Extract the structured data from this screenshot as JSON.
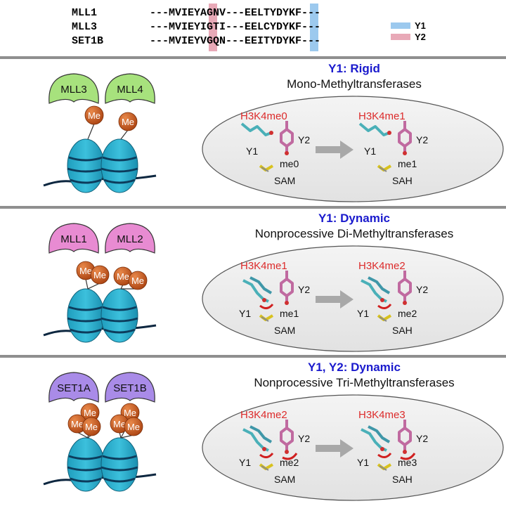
{
  "colors": {
    "y1_highlight": "#9cc9ee",
    "y2_highlight": "#e8a9b7",
    "divider": "#8f8f8f",
    "heading_blue": "#1a1acd",
    "red_label": "#dc2b2b",
    "mll34": "#a7e27d",
    "mll12": "#e88bd2",
    "set1": "#a98be8",
    "me_ball": "#c9541a",
    "nucleosome": "#2ab1cf",
    "ellipse": "#e6e6e6"
  },
  "alignment": {
    "names": [
      "MLL1",
      "MLL3",
      "SET1B"
    ],
    "sequences": [
      "---MVIEYAGNV---EELTYDYKF---",
      "---MVIEYIGTI---EELCYDYKF---",
      "---MVIEYVGQN---EEITYDYKF---"
    ]
  },
  "legend": {
    "y1": "Y1",
    "y2": "Y2"
  },
  "panels": [
    {
      "complexes": [
        "MLL3",
        "MLL4"
      ],
      "me_label": "Me",
      "title": "Y1: Rigid",
      "subtitle": "Mono-Methyltransferases",
      "left_state": {
        "state": "H3K4me0",
        "y1": "Y1",
        "y2": "Y2",
        "methyl": "me0",
        "cofactor": "SAM"
      },
      "right_state": {
        "state": "H3K4me1",
        "y1": "Y1",
        "y2": "Y2",
        "methyl": "me1",
        "cofactor": "SAH"
      }
    },
    {
      "complexes": [
        "MLL1",
        "MLL2"
      ],
      "me_label": "Me",
      "title": "Y1: Dynamic",
      "subtitle": "Nonprocessive Di-Methyltransferases",
      "left_state": {
        "state": "H3K4me1",
        "y1": "Y1",
        "y2": "Y2",
        "methyl": "me1",
        "cofactor": "SAM"
      },
      "right_state": {
        "state": "H3K4me2",
        "y1": "Y1",
        "y2": "Y2",
        "methyl": "me2",
        "cofactor": "SAH"
      }
    },
    {
      "complexes": [
        "SET1A",
        "SET1B"
      ],
      "me_label": "Me",
      "title": "Y1, Y2: Dynamic",
      "subtitle": "Nonprocessive Tri-Methyltransferases",
      "left_state": {
        "state": "H3K4me2",
        "y1": "Y1",
        "y2": "Y2",
        "methyl": "me2",
        "cofactor": "SAM"
      },
      "right_state": {
        "state": "H3K4me3",
        "y1": "Y1",
        "y2": "Y2",
        "methyl": "me3",
        "cofactor": "SAH"
      }
    }
  ]
}
